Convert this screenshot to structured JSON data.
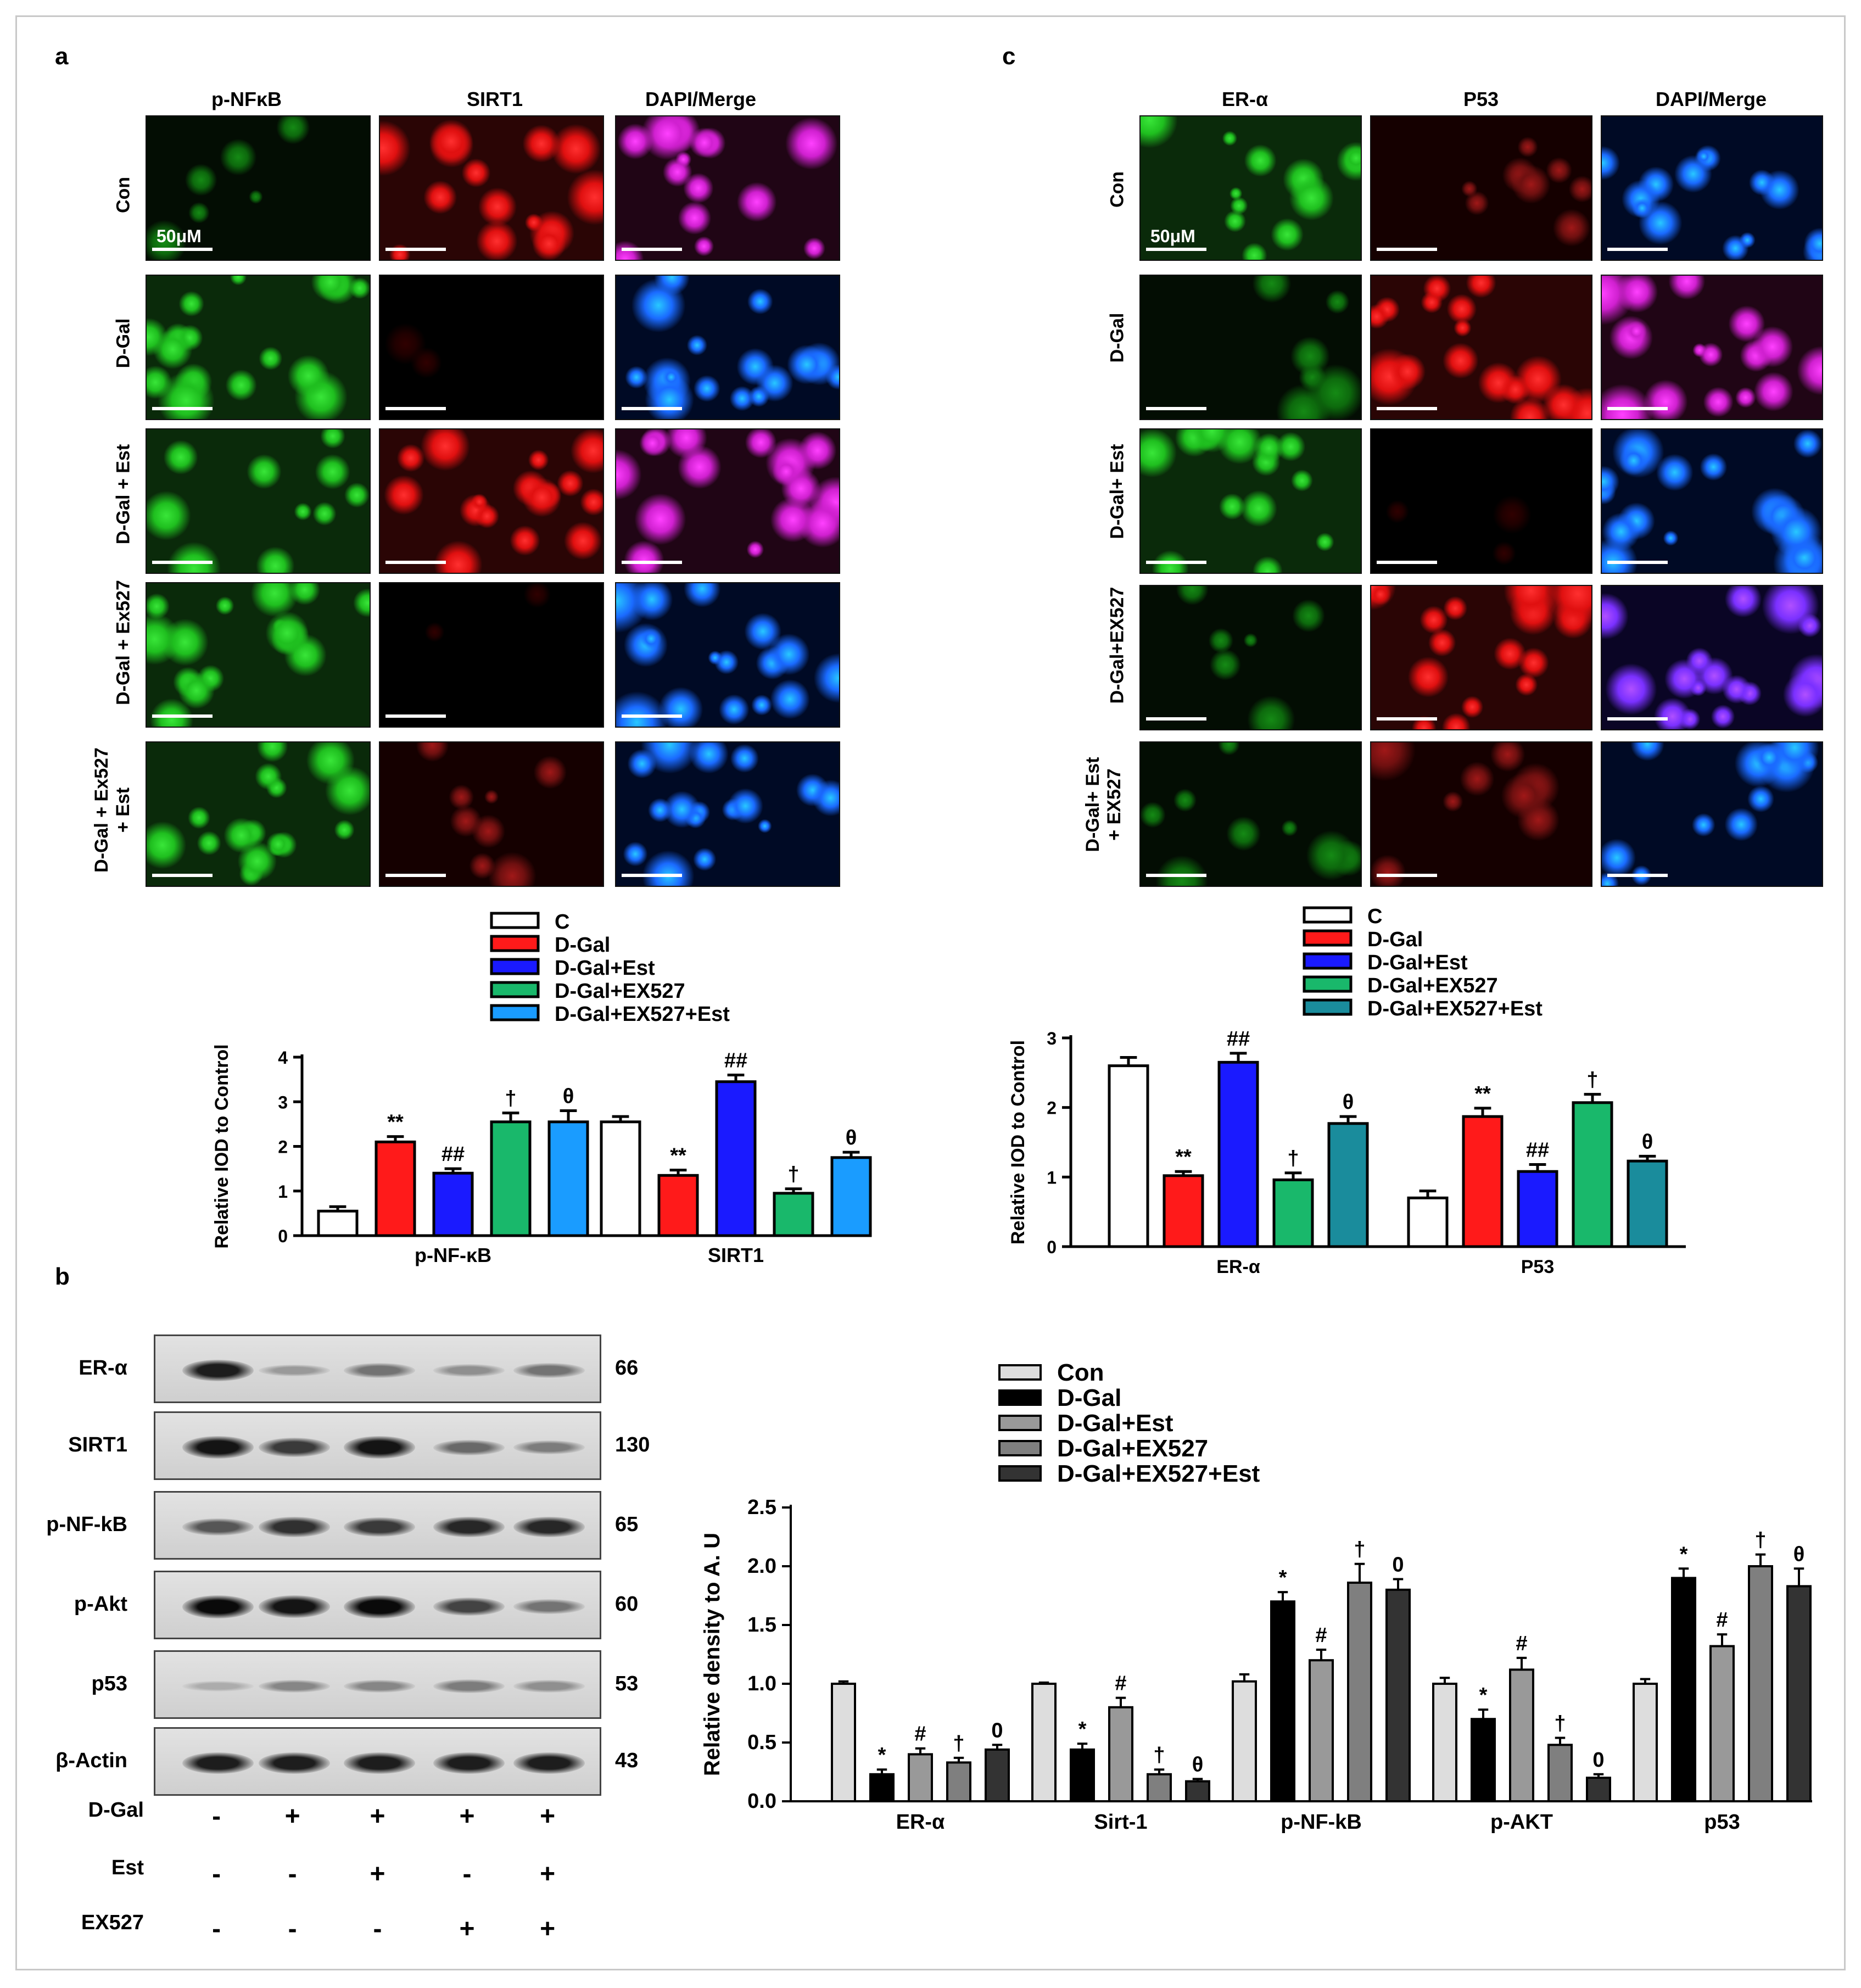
{
  "panel_a": {
    "letter": "a",
    "columns": [
      "p-NFκB",
      "SIRT1",
      "DAPI/Merge"
    ],
    "rows": [
      "Con",
      "D-Gal",
      "D-Gal + Est",
      "D-Gal + Ex527",
      "D-Gal + Ex527\n+ Est"
    ],
    "scale_label": "50μM"
  },
  "panel_c": {
    "letter": "c",
    "columns": [
      "ER-α",
      "P53",
      "DAPI/Merge"
    ],
    "rows": [
      "Con",
      "D-Gal",
      "D-Gal+ Est",
      "D-Gal+EX527",
      "D-Gal+ Est\n+ EX527"
    ],
    "scale_label": "50μM"
  },
  "panel_b": {
    "letter": "b",
    "blots": [
      {
        "name": "ER-α",
        "kda": "66",
        "intensity": [
          0.9,
          0.25,
          0.45,
          0.3,
          0.45
        ]
      },
      {
        "name": "SIRT1",
        "kda": "130",
        "intensity": [
          0.95,
          0.75,
          0.95,
          0.5,
          0.4
        ]
      },
      {
        "name": "p-NF-kB",
        "kda": "65",
        "intensity": [
          0.6,
          0.8,
          0.75,
          0.85,
          0.85
        ]
      },
      {
        "name": "p-Akt",
        "kda": "60",
        "intensity": [
          1.0,
          0.95,
          1.0,
          0.7,
          0.45
        ]
      },
      {
        "name": "p53",
        "kda": "53",
        "intensity": [
          0.15,
          0.35,
          0.35,
          0.4,
          0.3
        ]
      },
      {
        "name": "β-Actin",
        "kda": "43",
        "intensity": [
          0.9,
          0.9,
          0.9,
          0.9,
          0.9
        ]
      }
    ],
    "treatments": [
      {
        "name": "D-Gal",
        "signs": [
          "-",
          "+",
          "+",
          "+",
          "+"
        ]
      },
      {
        "name": "Est",
        "signs": [
          "-",
          "-",
          "+",
          "-",
          "+"
        ]
      },
      {
        "name": "EX527",
        "signs": [
          "-",
          "-",
          "-",
          "+",
          "+"
        ]
      }
    ]
  },
  "colors": {
    "a_series": [
      "#ffffff",
      "#ff1a1a",
      "#1a1aff",
      "#19b86b",
      "#1a9cff"
    ],
    "c_series": [
      "#ffffff",
      "#ff1a1a",
      "#1a1aff",
      "#19b86b",
      "#1a8c9c"
    ],
    "b_series": [
      "#dddddd",
      "#000000",
      "#999999",
      "#7f7f7f",
      "#333333"
    ]
  },
  "chart_data": [
    {
      "type": "bar",
      "panel": "a",
      "categories": [
        "p-NF-κB",
        "SIRT1"
      ],
      "ylabel": "Relative IOD to Control",
      "ylim": [
        0,
        4
      ],
      "yticks": [
        "0",
        "1",
        "2",
        "3",
        "4"
      ],
      "legend": "top",
      "series": [
        {
          "name": "C",
          "values": [
            0.55,
            2.55
          ],
          "errors": [
            0.1,
            0.12
          ],
          "marks": [
            "",
            ""
          ]
        },
        {
          "name": "D-Gal",
          "values": [
            2.1,
            1.35
          ],
          "errors": [
            0.12,
            0.12
          ],
          "marks": [
            "**",
            "**"
          ]
        },
        {
          "name": "D-Gal+Est",
          "values": [
            1.4,
            3.45
          ],
          "errors": [
            0.1,
            0.15
          ],
          "marks": [
            "##",
            "##"
          ]
        },
        {
          "name": "D-Gal+EX527",
          "values": [
            2.55,
            0.95
          ],
          "errors": [
            0.2,
            0.1
          ],
          "marks": [
            "†",
            "†"
          ]
        },
        {
          "name": "D-Gal+EX527+Est",
          "values": [
            2.55,
            1.75
          ],
          "errors": [
            0.25,
            0.12
          ],
          "marks": [
            "θ",
            "θ"
          ]
        }
      ]
    },
    {
      "type": "bar",
      "panel": "c",
      "categories": [
        "ER-α",
        "P53"
      ],
      "ylabel": "Relative IOD to Control",
      "ylim": [
        0,
        3
      ],
      "yticks": [
        "0",
        "1",
        "2",
        "3"
      ],
      "legend": "top",
      "series": [
        {
          "name": "C",
          "values": [
            2.6,
            0.7
          ],
          "errors": [
            0.12,
            0.1
          ],
          "marks": [
            "",
            ""
          ]
        },
        {
          "name": "D-Gal",
          "values": [
            1.02,
            1.87
          ],
          "errors": [
            0.06,
            0.12
          ],
          "marks": [
            "**",
            "**"
          ]
        },
        {
          "name": "D-Gal+Est",
          "values": [
            2.65,
            1.08
          ],
          "errors": [
            0.13,
            0.1
          ],
          "marks": [
            "##",
            "##"
          ]
        },
        {
          "name": "D-Gal+EX527",
          "values": [
            0.96,
            2.07
          ],
          "errors": [
            0.1,
            0.12
          ],
          "marks": [
            "†",
            "†"
          ]
        },
        {
          "name": "D-Gal+EX527+Est",
          "values": [
            1.77,
            1.23
          ],
          "errors": [
            0.1,
            0.07
          ],
          "marks": [
            "θ",
            "θ"
          ]
        }
      ]
    },
    {
      "type": "bar",
      "panel": "b",
      "categories": [
        "ER-α",
        "Sirt-1",
        "p-NF-kB",
        "p-AKT",
        "p53"
      ],
      "ylabel": "Relative density to A. U",
      "ylim": [
        0,
        2.5
      ],
      "yticks": [
        "0.0",
        "0.5",
        "1.0",
        "1.5",
        "2.0",
        "2.5"
      ],
      "legend": "top",
      "series": [
        {
          "name": "Con",
          "values": [
            1.0,
            1.0,
            1.02,
            1.0,
            1.0
          ],
          "errors": [
            0.02,
            0.01,
            0.06,
            0.05,
            0.04
          ],
          "marks": [
            "",
            "",
            "",
            "",
            ""
          ]
        },
        {
          "name": "D-Gal",
          "values": [
            0.23,
            0.44,
            1.7,
            0.7,
            1.9
          ],
          "errors": [
            0.04,
            0.05,
            0.08,
            0.08,
            0.08
          ],
          "marks": [
            "*",
            "*",
            "*",
            "*",
            "*"
          ]
        },
        {
          "name": "D-Gal+Est",
          "values": [
            0.4,
            0.8,
            1.2,
            1.12,
            1.32
          ],
          "errors": [
            0.05,
            0.08,
            0.09,
            0.1,
            0.1
          ],
          "marks": [
            "#",
            "#",
            "#",
            "#",
            "#"
          ]
        },
        {
          "name": "D-Gal+EX527",
          "values": [
            0.33,
            0.23,
            1.86,
            0.48,
            2.0
          ],
          "errors": [
            0.04,
            0.04,
            0.16,
            0.06,
            0.1
          ],
          "marks": [
            "†",
            "†",
            "†",
            "†",
            "†"
          ]
        },
        {
          "name": "D-Gal+EX527+Est",
          "values": [
            0.44,
            0.17,
            1.8,
            0.2,
            1.83
          ],
          "errors": [
            0.04,
            0.02,
            0.09,
            0.03,
            0.15
          ],
          "marks": [
            "0",
            "θ",
            "0",
            "0",
            "θ"
          ]
        }
      ]
    }
  ]
}
